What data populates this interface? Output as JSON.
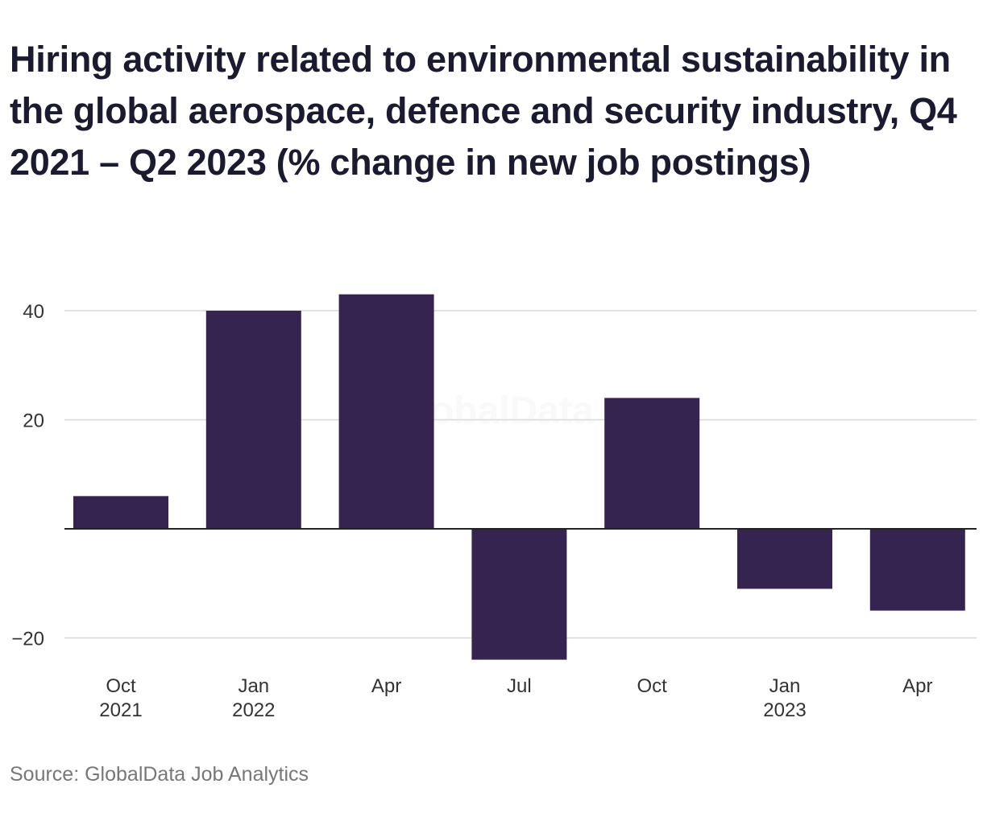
{
  "title": "Hiring activity related to environmental sustainability in the global aerospace, defence and security industry, Q4 2021 – Q2 2023 (% change in new job postings)",
  "source": "Source: GlobalData Job Analytics",
  "watermark": "GlobalData",
  "colors": {
    "bar": "#362450"
  },
  "chart_data": {
    "type": "bar",
    "categories": [
      {
        "line1": "Oct",
        "line2": "2021"
      },
      {
        "line1": "Jan",
        "line2": "2022"
      },
      {
        "line1": "Apr",
        "line2": ""
      },
      {
        "line1": "Jul",
        "line2": ""
      },
      {
        "line1": "Oct",
        "line2": ""
      },
      {
        "line1": "Jan",
        "line2": "2023"
      },
      {
        "line1": "Apr",
        "line2": ""
      }
    ],
    "values": [
      6,
      40,
      43,
      -24,
      24,
      -11,
      -15
    ],
    "yticks": [
      40,
      20,
      -20
    ],
    "ytick_labels": [
      "40",
      "20",
      "−20"
    ],
    "ylim": [
      -24,
      43
    ],
    "grid": true,
    "legend": "none"
  }
}
